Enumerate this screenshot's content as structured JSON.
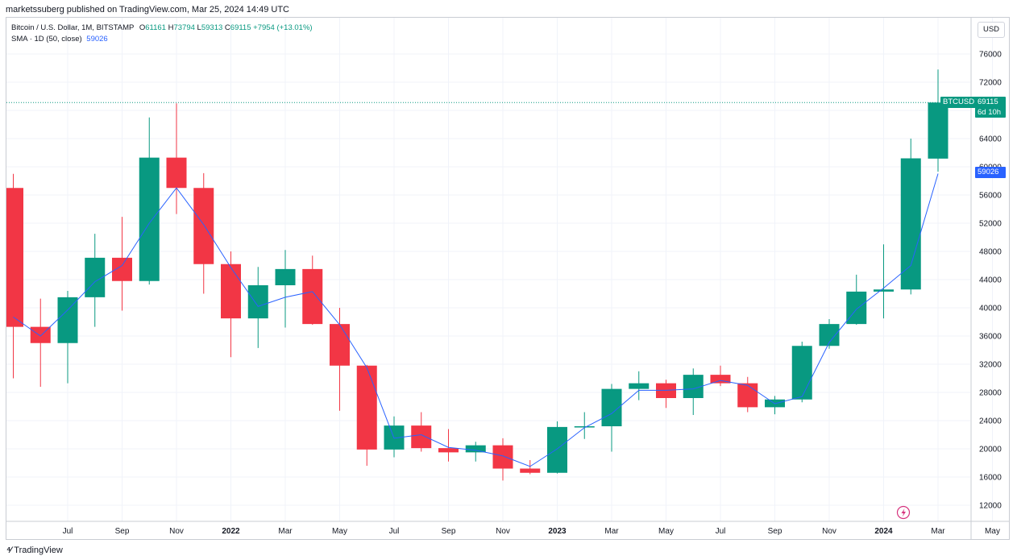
{
  "header": {
    "publisher_line": "marketssuberg published on TradingView.com, Mar 25, 2024 14:49 UTC"
  },
  "legend": {
    "symbol": "Bitcoin / U.S. Dollar, 1M, BITSTAMP",
    "o_label": "O",
    "o_value": "61161",
    "h_label": "H",
    "h_value": "73794",
    "l_label": "L",
    "l_value": "59313",
    "c_label": "C",
    "c_value": "69115",
    "change": "+7954 (+13.01%)",
    "sma_label": "SMA · 1D (50, close)",
    "sma_value": "59026"
  },
  "currency_button": "USD",
  "price_tag": {
    "label": "BTCUSD",
    "price": "69115",
    "countdown": "6d 10h"
  },
  "sma_tag": "59026",
  "footer": {
    "brand": "TradingView"
  },
  "colors": {
    "up": "#089981",
    "down": "#f23645",
    "sma": "#2962ff",
    "grid": "#f0f3fa"
  },
  "chart_data": {
    "type": "candlestick",
    "symbol": "BTCUSD",
    "interval": "1M",
    "ylim": [
      9000,
      79000
    ],
    "y_ticks": [
      12000,
      16000,
      20000,
      24000,
      28000,
      32000,
      36000,
      40000,
      44000,
      48000,
      52000,
      56000,
      60000,
      64000,
      68000,
      72000,
      76000
    ],
    "x_ticks": [
      {
        "month": "2021-07",
        "label": "Jul"
      },
      {
        "month": "2021-09",
        "label": "Sep"
      },
      {
        "month": "2021-11",
        "label": "Nov"
      },
      {
        "month": "2022-01",
        "label": "2022"
      },
      {
        "month": "2022-03",
        "label": "Mar"
      },
      {
        "month": "2022-05",
        "label": "May"
      },
      {
        "month": "2022-07",
        "label": "Jul"
      },
      {
        "month": "2022-09",
        "label": "Sep"
      },
      {
        "month": "2022-11",
        "label": "Nov"
      },
      {
        "month": "2023-01",
        "label": "2023"
      },
      {
        "month": "2023-03",
        "label": "Mar"
      },
      {
        "month": "2023-05",
        "label": "May"
      },
      {
        "month": "2023-07",
        "label": "Jul"
      },
      {
        "month": "2023-09",
        "label": "Sep"
      },
      {
        "month": "2023-11",
        "label": "Nov"
      },
      {
        "month": "2024-01",
        "label": "2024"
      },
      {
        "month": "2024-03",
        "label": "Mar"
      },
      {
        "month": "2024-05",
        "label": "May"
      }
    ],
    "candles": [
      {
        "month": "2021-05",
        "o": 57000,
        "h": 59000,
        "l": 30000,
        "c": 37300
      },
      {
        "month": "2021-06",
        "o": 37300,
        "h": 41300,
        "l": 28800,
        "c": 35000
      },
      {
        "month": "2021-07",
        "o": 35000,
        "h": 42400,
        "l": 29300,
        "c": 41500
      },
      {
        "month": "2021-08",
        "o": 41500,
        "h": 50500,
        "l": 37300,
        "c": 47100
      },
      {
        "month": "2021-09",
        "o": 47100,
        "h": 52900,
        "l": 39600,
        "c": 43800
      },
      {
        "month": "2021-10",
        "o": 43800,
        "h": 67000,
        "l": 43300,
        "c": 61300
      },
      {
        "month": "2021-11",
        "o": 61300,
        "h": 69000,
        "l": 53300,
        "c": 57000
      },
      {
        "month": "2021-12",
        "o": 57000,
        "h": 59100,
        "l": 42000,
        "c": 46200
      },
      {
        "month": "2022-01",
        "o": 46200,
        "h": 48000,
        "l": 33000,
        "c": 38500
      },
      {
        "month": "2022-02",
        "o": 38500,
        "h": 45800,
        "l": 34300,
        "c": 43200
      },
      {
        "month": "2022-03",
        "o": 43200,
        "h": 48200,
        "l": 37200,
        "c": 45500
      },
      {
        "month": "2022-04",
        "o": 45500,
        "h": 47400,
        "l": 37600,
        "c": 37700
      },
      {
        "month": "2022-05",
        "o": 37700,
        "h": 40000,
        "l": 25400,
        "c": 31800
      },
      {
        "month": "2022-06",
        "o": 31800,
        "h": 31900,
        "l": 17600,
        "c": 19900
      },
      {
        "month": "2022-07",
        "o": 19900,
        "h": 24600,
        "l": 18800,
        "c": 23300
      },
      {
        "month": "2022-08",
        "o": 23300,
        "h": 25200,
        "l": 19600,
        "c": 20100
      },
      {
        "month": "2022-09",
        "o": 20100,
        "h": 22800,
        "l": 18200,
        "c": 19500
      },
      {
        "month": "2022-10",
        "o": 19500,
        "h": 21000,
        "l": 18200,
        "c": 20500
      },
      {
        "month": "2022-11",
        "o": 20500,
        "h": 21500,
        "l": 15500,
        "c": 17200
      },
      {
        "month": "2022-12",
        "o": 17200,
        "h": 18400,
        "l": 16400,
        "c": 16600
      },
      {
        "month": "2023-01",
        "o": 16600,
        "h": 23900,
        "l": 16500,
        "c": 23100
      },
      {
        "month": "2023-02",
        "o": 23100,
        "h": 25200,
        "l": 21400,
        "c": 23200
      },
      {
        "month": "2023-03",
        "o": 23200,
        "h": 29200,
        "l": 19600,
        "c": 28500
      },
      {
        "month": "2023-04",
        "o": 28500,
        "h": 31000,
        "l": 26900,
        "c": 29300
      },
      {
        "month": "2023-05",
        "o": 29300,
        "h": 29800,
        "l": 25800,
        "c": 27200
      },
      {
        "month": "2023-06",
        "o": 27200,
        "h": 31400,
        "l": 24800,
        "c": 30500
      },
      {
        "month": "2023-07",
        "o": 30500,
        "h": 31800,
        "l": 28900,
        "c": 29300
      },
      {
        "month": "2023-08",
        "o": 29300,
        "h": 30200,
        "l": 25200,
        "c": 25900
      },
      {
        "month": "2023-09",
        "o": 25900,
        "h": 27500,
        "l": 24900,
        "c": 27000
      },
      {
        "month": "2023-10",
        "o": 27000,
        "h": 35200,
        "l": 26600,
        "c": 34600
      },
      {
        "month": "2023-11",
        "o": 34600,
        "h": 38400,
        "l": 34200,
        "c": 37700
      },
      {
        "month": "2023-12",
        "o": 37700,
        "h": 44700,
        "l": 37600,
        "c": 42300
      },
      {
        "month": "2024-01",
        "o": 42300,
        "h": 49000,
        "l": 38500,
        "c": 42600
      },
      {
        "month": "2024-02",
        "o": 42600,
        "h": 64000,
        "l": 41900,
        "c": 61200
      },
      {
        "month": "2024-03",
        "o": 61161,
        "h": 73794,
        "l": 59313,
        "c": 69115
      }
    ],
    "sma": [
      38700,
      36000,
      39700,
      43700,
      46000,
      52000,
      57000,
      51800,
      45700,
      40200,
      41500,
      42300,
      37600,
      31500,
      21500,
      22000,
      20200,
      19800,
      19000,
      17500,
      20000,
      23000,
      25000,
      28300,
      28300,
      28500,
      29700,
      29000,
      26400,
      27400,
      35100,
      39800,
      42800,
      46000,
      59026
    ],
    "current_price": 69115
  }
}
